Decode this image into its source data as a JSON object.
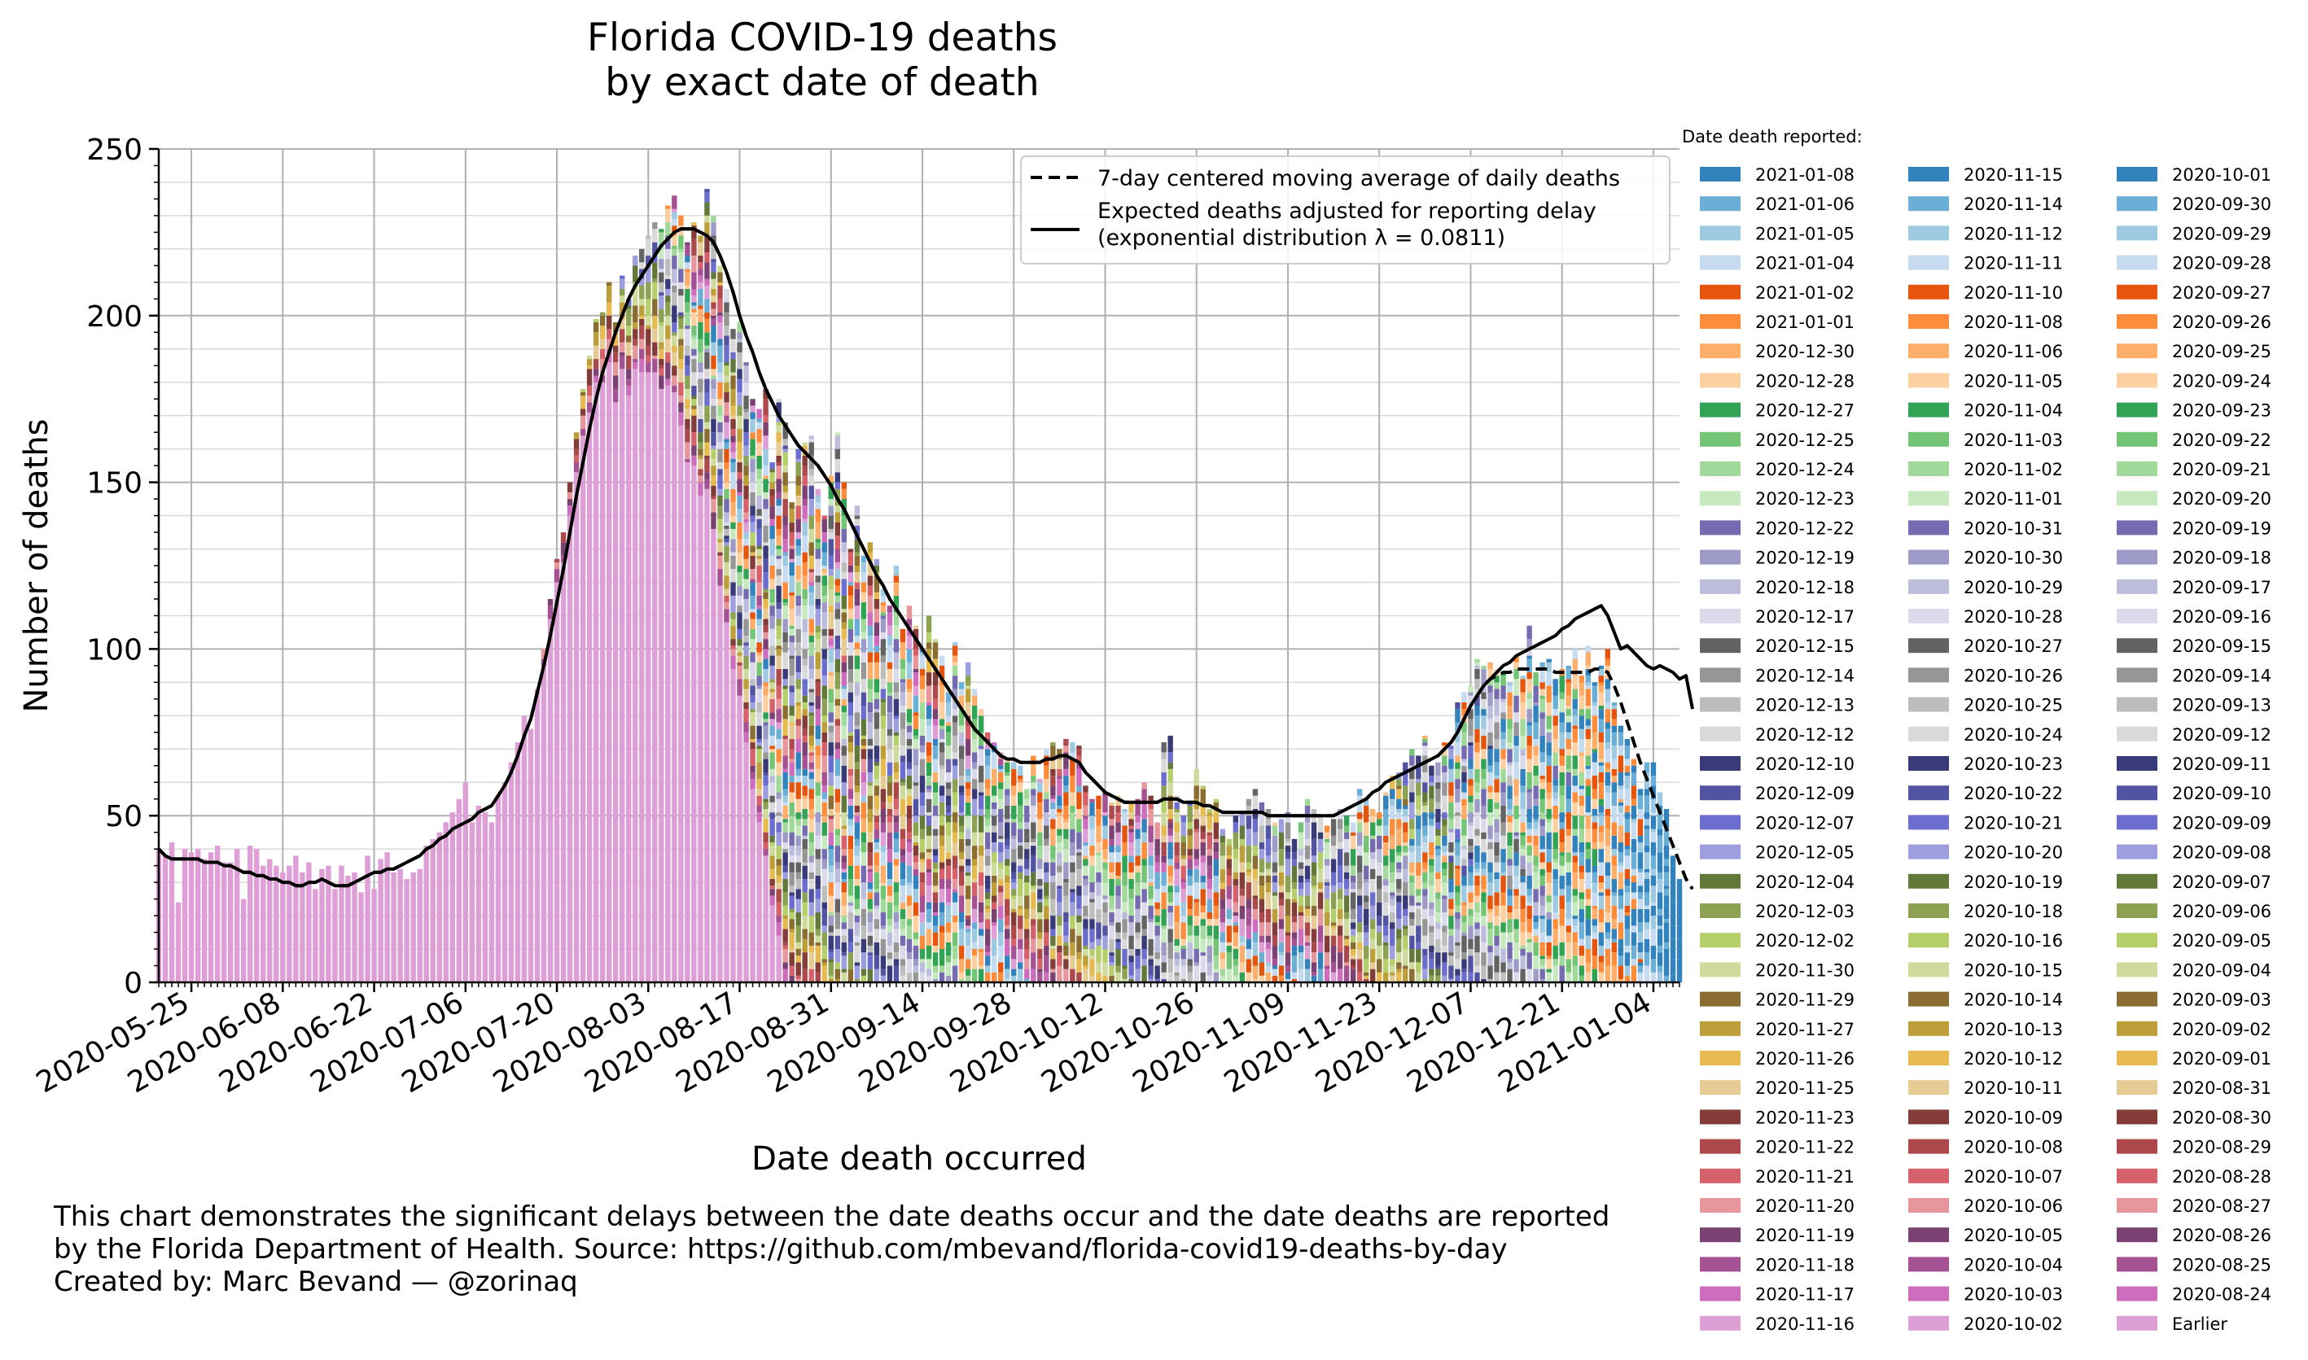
{
  "chart_data": {
    "type": "bar",
    "stacked": true,
    "title": "Florida COVID-19 deaths\nby exact date of death",
    "xlabel": "Date death occurred",
    "ylabel": "Number of deaths",
    "ylim": [
      0,
      250
    ],
    "yticks": [
      0,
      50,
      100,
      150,
      200,
      250
    ],
    "xlim": [
      "2020-05-20",
      "2021-01-08"
    ],
    "xticks": [
      "2020-05-25",
      "2020-06-08",
      "2020-06-22",
      "2020-07-06",
      "2020-07-20",
      "2020-08-03",
      "2020-08-17",
      "2020-08-31",
      "2020-09-14",
      "2020-09-28",
      "2020-10-12",
      "2020-10-26",
      "2020-11-09",
      "2020-11-23",
      "2020-12-07",
      "2020-12-21",
      "2021-01-04"
    ],
    "grid": true,
    "legend": {
      "placement": "upper right",
      "entries": [
        {
          "name": "7-day centered moving average of daily deaths",
          "style": "dashed"
        },
        {
          "name": "Expected deaths adjusted for reporting delay\n(exponential distribution λ = 0.0811)",
          "style": "solid"
        }
      ]
    },
    "reported_legend": {
      "title": "Date death reported:",
      "placement": "right, outside",
      "entries": [
        "2021-01-08",
        "2021-01-06",
        "2021-01-05",
        "2021-01-04",
        "2021-01-02",
        "2021-01-01",
        "2020-12-30",
        "2020-12-28",
        "2020-12-27",
        "2020-12-25",
        "2020-12-24",
        "2020-12-23",
        "2020-12-22",
        "2020-12-19",
        "2020-12-18",
        "2020-12-17",
        "2020-12-15",
        "2020-12-14",
        "2020-12-13",
        "2020-12-12",
        "2020-12-10",
        "2020-12-09",
        "2020-12-07",
        "2020-12-05",
        "2020-12-04",
        "2020-12-03",
        "2020-12-02",
        "2020-11-30",
        "2020-11-29",
        "2020-11-27",
        "2020-11-26",
        "2020-11-25",
        "2020-11-23",
        "2020-11-22",
        "2020-11-21",
        "2020-11-20",
        "2020-11-19",
        "2020-11-18",
        "2020-11-17",
        "2020-11-16",
        "2020-11-15",
        "2020-11-14",
        "2020-11-12",
        "2020-11-11",
        "2020-11-10",
        "2020-11-08",
        "2020-11-06",
        "2020-11-05",
        "2020-11-04",
        "2020-11-03",
        "2020-11-02",
        "2020-11-01",
        "2020-10-31",
        "2020-10-30",
        "2020-10-29",
        "2020-10-28",
        "2020-10-27",
        "2020-10-26",
        "2020-10-25",
        "2020-10-24",
        "2020-10-23",
        "2020-10-22",
        "2020-10-21",
        "2020-10-20",
        "2020-10-19",
        "2020-10-18",
        "2020-10-16",
        "2020-10-15",
        "2020-10-14",
        "2020-10-13",
        "2020-10-12",
        "2020-10-11",
        "2020-10-09",
        "2020-10-08",
        "2020-10-07",
        "2020-10-06",
        "2020-10-05",
        "2020-10-04",
        "2020-10-03",
        "2020-10-02",
        "2020-10-01",
        "2020-09-30",
        "2020-09-29",
        "2020-09-28",
        "2020-09-27",
        "2020-09-26",
        "2020-09-25",
        "2020-09-24",
        "2020-09-23",
        "2020-09-22",
        "2020-09-21",
        "2020-09-20",
        "2020-09-19",
        "2020-09-18",
        "2020-09-17",
        "2020-09-16",
        "2020-09-15",
        "2020-09-14",
        "2020-09-13",
        "2020-09-12",
        "2020-09-11",
        "2020-09-10",
        "2020-09-09",
        "2020-09-08",
        "2020-09-07",
        "2020-09-06",
        "2020-09-05",
        "2020-09-04",
        "2020-09-03",
        "2020-09-02",
        "2020-09-01",
        "2020-08-31",
        "2020-08-30",
        "2020-08-29",
        "2020-08-28",
        "2020-08-27",
        "2020-08-26",
        "2020-08-25",
        "2020-08-24",
        "Earlier"
      ],
      "palette": [
        "#3182bd",
        "#6baed6",
        "#9ecae1",
        "#c6dbef",
        "#e6550d",
        "#fd8d3c",
        "#fdae6b",
        "#fdd0a2",
        "#31a354",
        "#74c476",
        "#a1d99b",
        "#c7e9c0",
        "#756bb1",
        "#9e9ac8",
        "#bcbddc",
        "#dadaeb",
        "#636363",
        "#969696",
        "#bdbdbd",
        "#d9d9d9",
        "#393b79",
        "#5254a3",
        "#6b6ecf",
        "#9c9ede",
        "#637939",
        "#8ca252",
        "#b5cf6b",
        "#cedb9c",
        "#8c6d31",
        "#bd9e39",
        "#e7ba52",
        "#e7cb94",
        "#843c39",
        "#ad494a",
        "#d6616b",
        "#e7969c",
        "#7b4173",
        "#a55194",
        "#ce6dbd",
        "#de9ed6"
      ]
    },
    "total_deaths": {
      "start": "2020-05-20",
      "values": [
        40,
        38,
        42,
        24,
        40,
        39,
        40,
        37,
        39,
        41,
        36,
        36,
        40,
        25,
        41,
        40,
        35,
        37,
        35,
        33,
        35,
        38,
        33,
        36,
        28,
        34,
        35,
        28,
        35,
        32,
        33,
        27,
        38,
        28,
        37,
        39,
        33,
        34,
        31,
        33,
        34,
        41,
        43,
        45,
        48,
        51,
        55,
        60,
        48,
        53,
        51,
        48,
        56,
        60,
        66,
        72,
        80,
        76,
        88,
        100,
        115,
        127,
        135,
        150,
        165,
        178,
        188,
        199,
        201,
        210,
        198,
        212,
        205,
        218,
        220,
        224,
        228,
        226,
        233,
        236,
        230,
        222,
        228,
        224,
        238,
        230,
        215,
        208,
        196,
        198,
        186,
        175,
        172,
        178,
        156,
        175,
        168,
        144,
        160,
        162,
        164,
        148,
        140,
        152,
        165,
        150,
        130,
        143,
        128,
        132,
        127,
        118,
        113,
        125,
        106,
        113,
        107,
        100,
        110,
        103,
        98,
        87,
        102,
        90,
        96,
        88,
        82,
        75,
        72,
        69,
        67,
        66,
        65,
        58,
        68,
        61,
        70,
        72,
        70,
        73,
        72,
        71,
        59,
        55,
        56,
        57,
        54,
        56,
        52,
        54,
        55,
        60,
        56,
        48,
        72,
        74,
        56,
        50,
        54,
        64,
        59,
        52,
        55,
        46,
        43,
        50,
        51,
        55,
        58,
        54,
        52,
        48,
        49,
        51,
        43,
        48,
        55,
        52,
        50,
        47,
        49,
        52,
        50,
        48,
        58,
        55,
        52,
        51,
        57,
        62,
        63,
        66,
        70,
        68,
        74,
        65,
        66,
        72,
        71,
        84,
        87,
        89,
        97,
        95,
        96,
        94,
        93,
        90,
        98,
        92,
        107,
        93,
        96,
        97,
        91,
        94,
        95,
        100,
        92,
        101,
        90,
        95,
        100,
        84,
        77,
        73,
        67,
        58,
        66,
        66,
        57,
        52,
        38,
        31,
        38,
        24,
        24,
        4
      ]
    },
    "moving_average_7day": {
      "start": "2020-05-20",
      "values": [
        40,
        38,
        37,
        37,
        37,
        37,
        37,
        36,
        36,
        36,
        35,
        35,
        34,
        33,
        33,
        32,
        32,
        31,
        31,
        30,
        30,
        29,
        29,
        30,
        30,
        31,
        30,
        29,
        29,
        29,
        30,
        31,
        32,
        33,
        33,
        34,
        34,
        35,
        36,
        37,
        38,
        40,
        41,
        43,
        44,
        46,
        47,
        48,
        49,
        51,
        52,
        53,
        56,
        59,
        63,
        68,
        74,
        79,
        87,
        95,
        104,
        114,
        124,
        135,
        146,
        156,
        166,
        175,
        183,
        189,
        195,
        200,
        205,
        209,
        212,
        215,
        218,
        221,
        223,
        225,
        226,
        226,
        226,
        225,
        224,
        222,
        218,
        213,
        207,
        200,
        194,
        189,
        183,
        178,
        174,
        170,
        167,
        164,
        161,
        159,
        157,
        155,
        152,
        149,
        145,
        142,
        138,
        134,
        130,
        126,
        122,
        119,
        115,
        112,
        109,
        106,
        103,
        100,
        97,
        94,
        91,
        88,
        85,
        82,
        79,
        76,
        74,
        72,
        70,
        68,
        67,
        67,
        66,
        66,
        66,
        66,
        67,
        67,
        68,
        68,
        67,
        66,
        63,
        61,
        59,
        57,
        56,
        55,
        54,
        54,
        54,
        54,
        54,
        54,
        55,
        55,
        55,
        54,
        54,
        54,
        53,
        53,
        52,
        51,
        51,
        51,
        51,
        51,
        51,
        51,
        50,
        50,
        50,
        50,
        50,
        50,
        50,
        50,
        50,
        50,
        50,
        51,
        52,
        53,
        54,
        55,
        57,
        58,
        60,
        61,
        62,
        63,
        64,
        65,
        66,
        67,
        68,
        70,
        72,
        75,
        79,
        83,
        86,
        89,
        91,
        92,
        93,
        93,
        94,
        94,
        94,
        94,
        94,
        94,
        93,
        93,
        93,
        93,
        93,
        93,
        94,
        94,
        93,
        89,
        84,
        78,
        72,
        66,
        61,
        56,
        51,
        46,
        41,
        36,
        31,
        28
      ]
    },
    "expected_adjusted": {
      "start": "2020-05-20",
      "values": [
        40,
        38,
        37,
        37,
        37,
        37,
        37,
        36,
        36,
        36,
        35,
        35,
        34,
        33,
        33,
        32,
        32,
        31,
        31,
        30,
        30,
        29,
        29,
        30,
        30,
        31,
        30,
        29,
        29,
        29,
        30,
        31,
        32,
        33,
        33,
        34,
        34,
        35,
        36,
        37,
        38,
        40,
        41,
        43,
        44,
        46,
        47,
        48,
        49,
        51,
        52,
        53,
        56,
        59,
        63,
        68,
        74,
        79,
        87,
        95,
        104,
        114,
        124,
        135,
        146,
        156,
        166,
        175,
        183,
        189,
        195,
        200,
        205,
        209,
        212,
        215,
        218,
        221,
        223,
        225,
        226,
        226,
        226,
        225,
        224,
        222,
        218,
        213,
        207,
        200,
        194,
        189,
        183,
        178,
        174,
        170,
        167,
        164,
        161,
        159,
        157,
        155,
        152,
        149,
        145,
        142,
        138,
        134,
        130,
        126,
        122,
        119,
        115,
        112,
        109,
        106,
        103,
        100,
        97,
        94,
        91,
        88,
        85,
        82,
        79,
        76,
        74,
        72,
        70,
        68,
        67,
        67,
        66,
        66,
        66,
        66,
        67,
        67,
        68,
        68,
        67,
        66,
        63,
        61,
        59,
        57,
        56,
        55,
        54,
        54,
        54,
        54,
        54,
        54,
        55,
        55,
        55,
        54,
        54,
        54,
        53,
        53,
        52,
        51,
        51,
        51,
        51,
        51,
        51,
        51,
        50,
        50,
        50,
        50,
        50,
        50,
        50,
        50,
        50,
        50,
        50,
        51,
        52,
        53,
        54,
        55,
        57,
        58,
        60,
        61,
        62,
        63,
        64,
        65,
        66,
        67,
        68,
        70,
        72,
        75,
        79,
        83,
        86,
        89,
        91,
        93,
        95,
        96,
        98,
        99,
        100,
        101,
        102,
        103,
        104,
        106,
        107,
        109,
        110,
        111,
        112,
        113,
        110,
        105,
        100,
        101,
        99,
        97,
        95,
        94,
        95,
        94,
        93,
        91,
        92,
        82
      ]
    }
  },
  "footer": {
    "line1": "This chart demonstrates the significant delays between the date deaths occur and the date deaths are reported",
    "line2": "by the Florida Department of Health. Source: https://github.com/mbevand/florida-covid19-deaths-by-day",
    "line3": "Created by: Marc Bevand — @zorinaq"
  }
}
